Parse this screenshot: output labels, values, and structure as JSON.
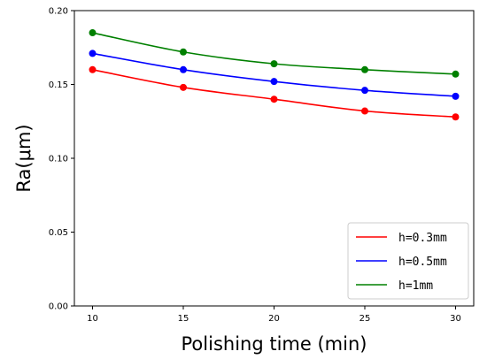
{
  "chart_data": {
    "type": "line",
    "xlabel": "Polishing time (min)",
    "ylabel": "Ra(μm)",
    "x": [
      10,
      15,
      20,
      25,
      30
    ],
    "xlim": [
      9,
      31
    ],
    "ylim": [
      0.0,
      0.2
    ],
    "xticks": [
      10,
      15,
      20,
      25,
      30
    ],
    "yticks": [
      "0.00",
      "0.05",
      "0.10",
      "0.15",
      "0.20"
    ],
    "grid": false,
    "legend_position": "lower-right",
    "series": [
      {
        "name": "h=0.3mm",
        "color": "#ff0000",
        "values": [
          0.16,
          0.148,
          0.14,
          0.132,
          0.128
        ]
      },
      {
        "name": "h=0.5mm",
        "color": "#0000ff",
        "values": [
          0.171,
          0.16,
          0.152,
          0.146,
          0.142
        ]
      },
      {
        "name": "h=1mm",
        "color": "#008000",
        "values": [
          0.185,
          0.172,
          0.164,
          0.16,
          0.157
        ]
      }
    ]
  }
}
